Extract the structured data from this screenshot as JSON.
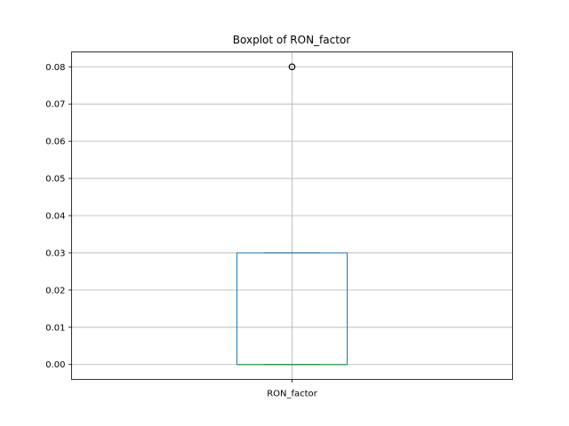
{
  "chart_data": {
    "type": "box",
    "title": "Boxplot of RON_factor",
    "xlabel": "",
    "ylabel": "",
    "categories": [
      "RON_factor"
    ],
    "ylim": [
      -0.004,
      0.084
    ],
    "yticks": [
      0.0,
      0.01,
      0.02,
      0.03,
      0.04,
      0.05,
      0.06,
      0.07,
      0.08
    ],
    "ytick_labels": [
      "0.00",
      "0.01",
      "0.02",
      "0.03",
      "0.04",
      "0.05",
      "0.06",
      "0.07",
      "0.08"
    ],
    "grid": true,
    "series": [
      {
        "whisker_low": 0.0,
        "q1": 0.0,
        "median": 0.0,
        "q3": 0.03,
        "whisker_high": 0.03,
        "outliers": [
          0.08
        ]
      }
    ],
    "colors": {
      "box": "#1f77b4",
      "median": "#2ca02c",
      "whisker": "#000000",
      "grid": "#b0b0b0",
      "axes": "#000000"
    }
  }
}
